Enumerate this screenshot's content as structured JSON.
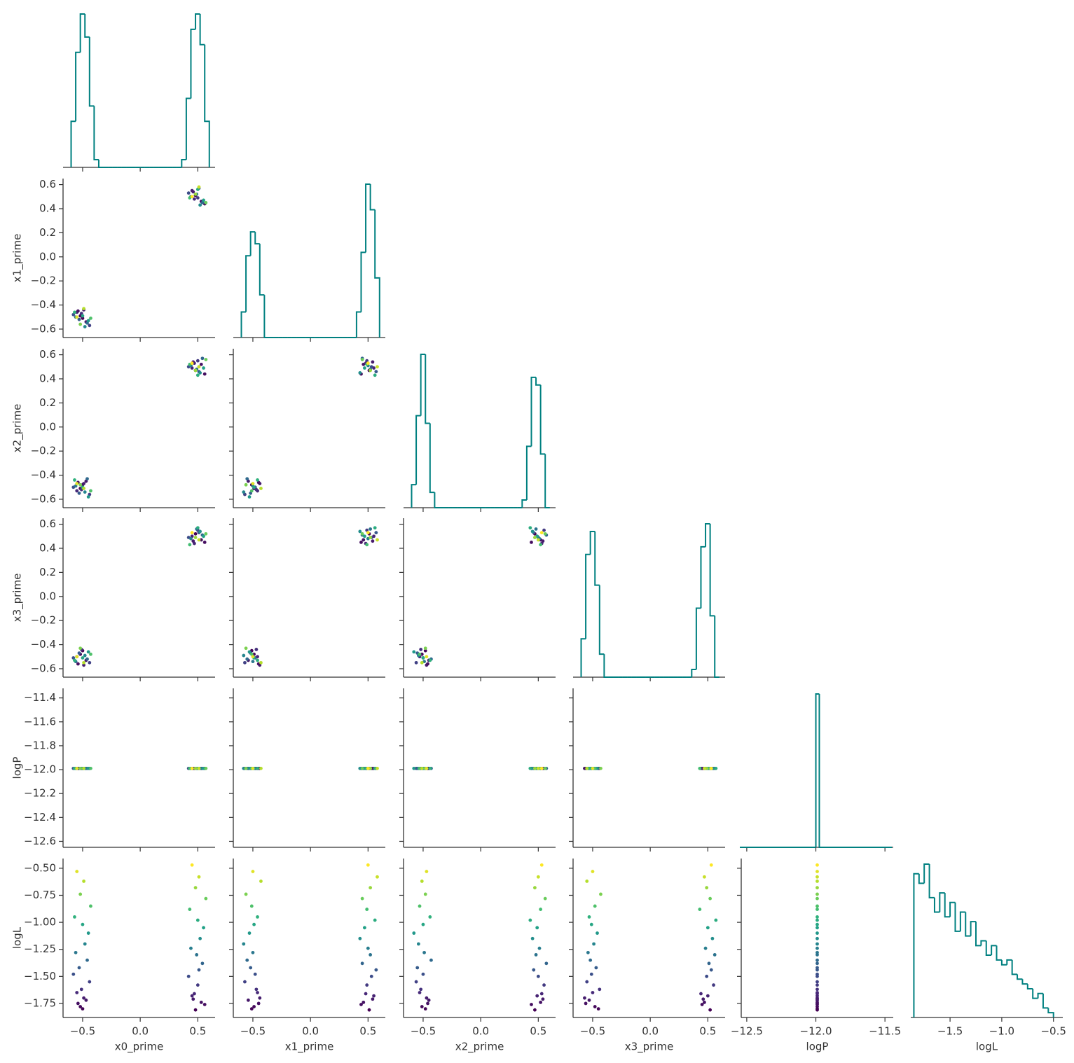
{
  "chart_data": {
    "type": "corner",
    "variables": [
      "x0_prime",
      "x1_prime",
      "x2_prime",
      "x3_prime",
      "logP",
      "logL"
    ],
    "hist_color": "#008080",
    "colormap": "viridis",
    "color_by": 5,
    "axes": [
      {
        "lim": [
          -0.67,
          0.65
        ],
        "ticks": [
          {
            "value": -0.5,
            "label": "−0.5"
          },
          {
            "value": 0,
            "label": "0.0"
          },
          {
            "value": 0.5,
            "label": "0.5"
          }
        ]
      },
      {
        "lim": [
          -0.67,
          0.65
        ],
        "ticks": [
          {
            "value": -0.5,
            "label": "−0.5"
          },
          {
            "value": 0,
            "label": "0.0"
          },
          {
            "value": 0.5,
            "label": "0.5"
          }
        ],
        "yticks": [
          {
            "value": -0.6,
            "label": "−0.6"
          },
          {
            "value": -0.4,
            "label": "−0.4"
          },
          {
            "value": -0.2,
            "label": "−0.2"
          },
          {
            "value": 0,
            "label": "0.0"
          },
          {
            "value": 0.2,
            "label": "0.2"
          },
          {
            "value": 0.4,
            "label": "0.4"
          },
          {
            "value": 0.6,
            "label": "0.6"
          }
        ]
      },
      {
        "lim": [
          -0.67,
          0.65
        ],
        "ticks": [
          {
            "value": -0.5,
            "label": "−0.5"
          },
          {
            "value": 0,
            "label": "0.0"
          },
          {
            "value": 0.5,
            "label": "0.5"
          }
        ],
        "yticks": [
          {
            "value": -0.6,
            "label": "−0.6"
          },
          {
            "value": -0.4,
            "label": "−0.4"
          },
          {
            "value": -0.2,
            "label": "−0.2"
          },
          {
            "value": 0,
            "label": "0.0"
          },
          {
            "value": 0.2,
            "label": "0.2"
          },
          {
            "value": 0.4,
            "label": "0.4"
          },
          {
            "value": 0.6,
            "label": "0.6"
          }
        ]
      },
      {
        "lim": [
          -0.67,
          0.65
        ],
        "ticks": [
          {
            "value": -0.5,
            "label": "−0.5"
          },
          {
            "value": 0,
            "label": "0.0"
          },
          {
            "value": 0.5,
            "label": "0.5"
          }
        ],
        "yticks": [
          {
            "value": -0.6,
            "label": "−0.6"
          },
          {
            "value": -0.4,
            "label": "−0.4"
          },
          {
            "value": -0.2,
            "label": "−0.2"
          },
          {
            "value": 0,
            "label": "0.0"
          },
          {
            "value": 0.2,
            "label": "0.2"
          },
          {
            "value": 0.4,
            "label": "0.4"
          },
          {
            "value": 0.6,
            "label": "0.6"
          }
        ]
      },
      {
        "lim": [
          -12.54,
          -11.44
        ],
        "ylim": [
          -12.65,
          -11.32
        ],
        "ticks": [
          {
            "value": -12.5,
            "label": "−12.5"
          },
          {
            "value": -12,
            "label": "−12.0"
          },
          {
            "value": -11.5,
            "label": "−11.5"
          }
        ],
        "yticks": [
          {
            "value": -12.6,
            "label": "−12.6"
          },
          {
            "value": -12.4,
            "label": "−12.4"
          },
          {
            "value": -12.2,
            "label": "−12.2"
          },
          {
            "value": -12,
            "label": "−12.0"
          },
          {
            "value": -11.8,
            "label": "−11.8"
          },
          {
            "value": -11.6,
            "label": "−11.6"
          },
          {
            "value": -11.4,
            "label": "−11.4"
          }
        ]
      },
      {
        "lim": [
          -1.88,
          -0.41
        ],
        "ticks": [
          {
            "value": -1.5,
            "label": "−1.5"
          },
          {
            "value": -1,
            "label": "−1.0"
          },
          {
            "value": -0.5,
            "label": "−0.5"
          }
        ],
        "yticks": [
          {
            "value": -1.75,
            "label": "−1.75"
          },
          {
            "value": -1.5,
            "label": "−1.50"
          },
          {
            "value": -1.25,
            "label": "−1.25"
          },
          {
            "value": -1,
            "label": "−1.00"
          },
          {
            "value": -0.75,
            "label": "−0.75"
          },
          {
            "value": -0.5,
            "label": "−0.50"
          }
        ]
      }
    ],
    "histograms": [
      {
        "bins": [
          -0.6,
          -0.56,
          -0.52,
          -0.48,
          -0.44,
          -0.4,
          -0.36,
          -0.32,
          -0.28,
          -0.24,
          -0.2,
          -0.16,
          -0.12,
          -0.08,
          -0.04,
          0,
          0.04,
          0.08,
          0.12,
          0.16,
          0.2,
          0.24,
          0.28,
          0.32,
          0.36,
          0.4,
          0.44,
          0.48,
          0.52,
          0.56,
          0.6
        ],
        "counts": [
          30,
          75,
          100,
          85,
          40,
          5,
          0,
          0,
          0,
          0,
          0,
          0,
          0,
          0,
          0,
          0,
          0,
          0,
          0,
          0,
          0,
          0,
          0,
          0,
          5,
          45,
          90,
          100,
          80,
          30
        ]
      },
      {
        "bins": [
          -0.6,
          -0.56,
          -0.52,
          -0.48,
          -0.44,
          -0.4,
          -0.36,
          -0.32,
          -0.28,
          -0.24,
          -0.2,
          -0.16,
          -0.12,
          -0.08,
          -0.04,
          0,
          0.04,
          0.08,
          0.12,
          0.16,
          0.2,
          0.24,
          0.28,
          0.32,
          0.36,
          0.4,
          0.44,
          0.48,
          0.52,
          0.56,
          0.6
        ],
        "counts": [
          15,
          48,
          62,
          55,
          25,
          0,
          0,
          0,
          0,
          0,
          0,
          0,
          0,
          0,
          0,
          0,
          0,
          0,
          0,
          0,
          0,
          0,
          0,
          0,
          0,
          15,
          50,
          90,
          75,
          35
        ]
      },
      {
        "bins": [
          -0.6,
          -0.56,
          -0.52,
          -0.48,
          -0.44,
          -0.4,
          -0.36,
          -0.32,
          -0.28,
          -0.24,
          -0.2,
          -0.16,
          -0.12,
          -0.08,
          -0.04,
          0,
          0.04,
          0.08,
          0.12,
          0.16,
          0.2,
          0.24,
          0.28,
          0.32,
          0.36,
          0.4,
          0.44,
          0.48,
          0.52,
          0.56,
          0.6
        ],
        "counts": [
          15,
          60,
          100,
          55,
          10,
          0,
          0,
          0,
          0,
          0,
          0,
          0,
          0,
          0,
          0,
          0,
          0,
          0,
          0,
          0,
          0,
          0,
          0,
          0,
          5,
          40,
          85,
          80,
          35,
          0
        ]
      },
      {
        "bins": [
          -0.6,
          -0.56,
          -0.52,
          -0.48,
          -0.44,
          -0.4,
          -0.36,
          -0.32,
          -0.28,
          -0.24,
          -0.2,
          -0.16,
          -0.12,
          -0.08,
          -0.04,
          0,
          0.04,
          0.08,
          0.12,
          0.16,
          0.2,
          0.24,
          0.28,
          0.32,
          0.36,
          0.4,
          0.44,
          0.48,
          0.52,
          0.56,
          0.6
        ],
        "counts": [
          25,
          80,
          95,
          60,
          15,
          0,
          0,
          0,
          0,
          0,
          0,
          0,
          0,
          0,
          0,
          0,
          0,
          0,
          0,
          0,
          0,
          0,
          0,
          0,
          5,
          45,
          85,
          100,
          40,
          0
        ]
      },
      {
        "bins": [
          -12.55,
          -12.0,
          -11.975,
          -11.45
        ],
        "counts": [
          0,
          100,
          0
        ]
      },
      {
        "bins": [
          -1.85,
          -1.8,
          -1.75,
          -1.7,
          -1.65,
          -1.6,
          -1.55,
          -1.5,
          -1.45,
          -1.4,
          -1.35,
          -1.3,
          -1.25,
          -1.2,
          -1.15,
          -1.1,
          -1.05,
          -1.0,
          -0.95,
          -0.9,
          -0.85,
          -0.8,
          -0.75,
          -0.7,
          -0.65,
          -0.6,
          -0.55,
          -0.5
        ],
        "counts": [
          30,
          28,
          32,
          25,
          22,
          26,
          21,
          24,
          18,
          22,
          17,
          20,
          15,
          16,
          13,
          15,
          12,
          11,
          12,
          9,
          8,
          7,
          6,
          4,
          5,
          2,
          1
        ]
      }
    ],
    "samples": [
      [
        -0.52,
        -0.47,
        -0.55,
        -0.5,
        -0.44,
        -0.58,
        -0.49,
        -0.53,
        -0.46,
        -0.51,
        -0.56,
        -0.48,
        -0.54,
        -0.45,
        -0.5,
        -0.57,
        -0.43,
        -0.52,
        -0.49,
        -0.55,
        0.48,
        0.53,
        0.45,
        0.5,
        0.56,
        0.42,
        0.51,
        0.47,
        0.54,
        0.49,
        0.44,
        0.52,
        0.46,
        0.55,
        0.5,
        0.43,
        0.57,
        0.48,
        0.51,
        0.45
      ],
      [
        -0.49,
        -0.54,
        -0.46,
        -0.51,
        -0.57,
        -0.48,
        -0.44,
        -0.52,
        -0.55,
        -0.47,
        -0.5,
        -0.58,
        -0.45,
        -0.53,
        -0.49,
        -0.46,
        -0.51,
        -0.56,
        -0.43,
        -0.5,
        0.51,
        0.46,
        0.55,
        0.49,
        0.44,
        0.53,
        0.57,
        0.48,
        0.45,
        0.52,
        0.5,
        0.43,
        0.54,
        0.47,
        0.56,
        0.49,
        0.45,
        0.52,
        0.58,
        0.5
      ],
      [
        -0.51,
        -0.45,
        -0.53,
        -0.48,
        -0.56,
        -0.5,
        -0.47,
        -0.55,
        -0.43,
        -0.52,
        -0.49,
        -0.54,
        -0.46,
        -0.58,
        -0.5,
        -0.44,
        -0.53,
        -0.48,
        -0.51,
        -0.47,
        0.47,
        0.52,
        0.49,
        0.55,
        0.44,
        0.5,
        0.46,
        0.53,
        0.57,
        0.48,
        0.51,
        0.45,
        0.54,
        0.49,
        0.43,
        0.52,
        0.56,
        0.47,
        0.5,
        0.53
      ],
      [
        -0.48,
        -0.53,
        -0.5,
        -0.45,
        -0.55,
        -0.51,
        -0.57,
        -0.47,
        -0.52,
        -0.44,
        -0.54,
        -0.49,
        -0.56,
        -0.46,
        -0.51,
        -0.53,
        -0.48,
        -0.43,
        -0.55,
        -0.5,
        0.52,
        0.47,
        0.5,
        0.55,
        0.45,
        0.49,
        0.53,
        0.44,
        0.51,
        0.56,
        0.48,
        0.54,
        0.46,
        0.5,
        0.57,
        0.43,
        0.52,
        0.49,
        0.47,
        0.53
      ],
      [
        -11.99,
        -11.99,
        -11.99,
        -11.99,
        -11.99,
        -11.99,
        -11.99,
        -11.99,
        -11.99,
        -11.99,
        -11.99,
        -11.99,
        -11.99,
        -11.99,
        -11.99,
        -11.99,
        -11.99,
        -11.99,
        -11.99,
        -11.99,
        -11.99,
        -11.99,
        -11.99,
        -11.99,
        -11.99,
        -11.99,
        -11.99,
        -11.99,
        -11.99,
        -11.99,
        -11.99,
        -11.99,
        -11.99,
        -11.99,
        -11.99,
        -11.99,
        -11.99,
        -11.99,
        -11.99,
        -11.99
      ],
      [
        -1.78,
        -1.72,
        -1.65,
        -1.8,
        -1.55,
        -1.48,
        -1.7,
        -1.42,
        -1.35,
        -1.62,
        -1.28,
        -1.2,
        -1.75,
        -1.1,
        -1.02,
        -0.95,
        -0.85,
        -0.74,
        -0.62,
        -0.53,
        -1.81,
        -1.74,
        -1.68,
        -1.58,
        -1.76,
        -1.5,
        -1.44,
        -1.66,
        -1.38,
        -1.3,
        -1.24,
        -1.15,
        -1.71,
        -1.05,
        -0.98,
        -0.88,
        -0.78,
        -0.68,
        -0.58,
        -0.47
      ]
    ]
  }
}
